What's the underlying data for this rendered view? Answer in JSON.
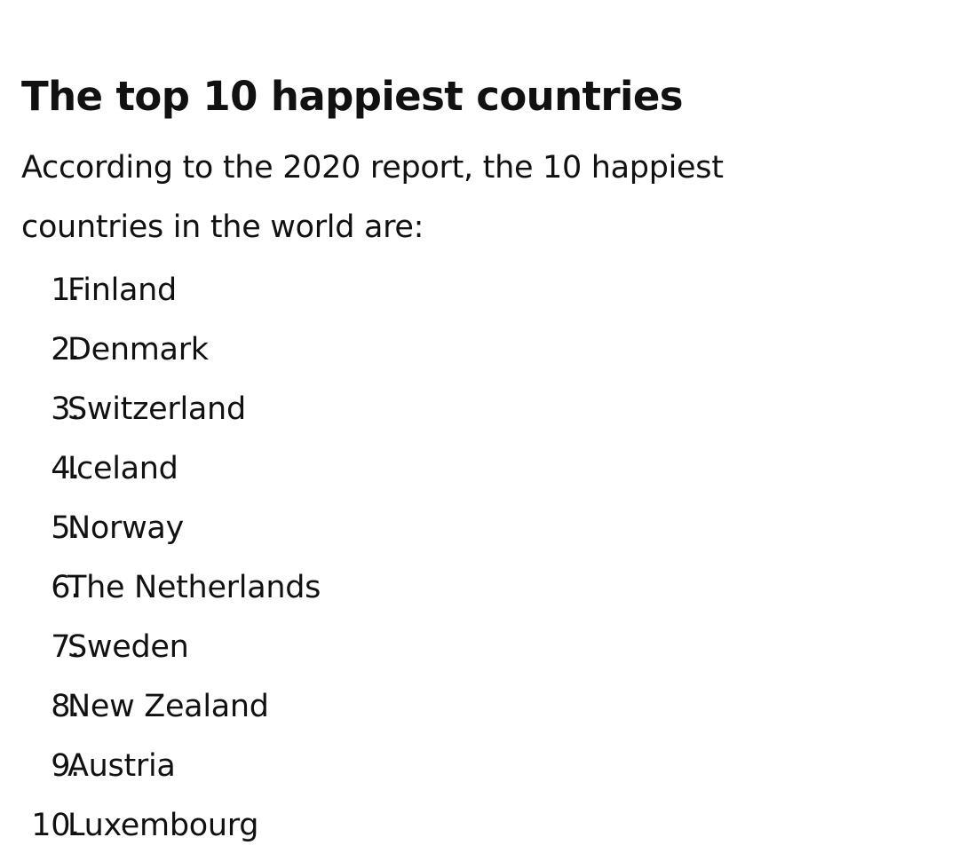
{
  "article": {
    "title": "The top 10 happiest countries",
    "intro": "According to the 2020 report, the 10 happiest countries in the world are:",
    "list": [
      {
        "number": "1.",
        "country": "Finland"
      },
      {
        "number": "2.",
        "country": "Denmark"
      },
      {
        "number": "3.",
        "country": "Switzerland"
      },
      {
        "number": "4.",
        "country": "Iceland"
      },
      {
        "number": "5.",
        "country": "Norway"
      },
      {
        "number": "6.",
        "country": "The Netherlands"
      },
      {
        "number": "7.",
        "country": "Sweden"
      },
      {
        "number": "8.",
        "country": "New Zealand"
      },
      {
        "number": "9.",
        "country": "Austria"
      },
      {
        "number": "10.",
        "country": "Luxembourg"
      }
    ]
  }
}
